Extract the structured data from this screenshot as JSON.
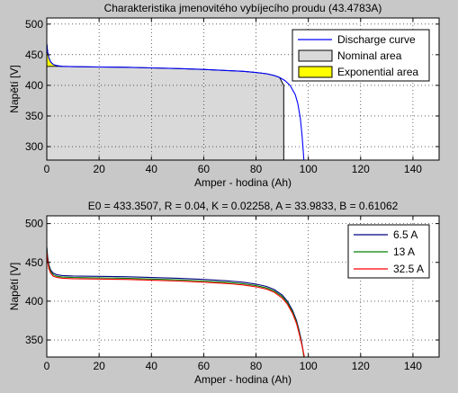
{
  "figure": {
    "background": "#c8c8c8"
  },
  "chart_data": [
    {
      "type": "line",
      "title": "Charakteristika jmenovitého vybíjecího proudu (43.4783A)",
      "xlabel": "Amper - hodina (Ah)",
      "ylabel": "Napětí [V]",
      "xlim": [
        0,
        150
      ],
      "ylim": [
        278,
        510
      ],
      "xticks": [
        0,
        20,
        40,
        60,
        80,
        100,
        120,
        140
      ],
      "yticks": [
        300,
        350,
        400,
        450,
        500
      ],
      "grid": true,
      "legend_position": "top-right",
      "series": [
        {
          "name": "Discharge curve",
          "color": "#0000ff",
          "x": [
            0,
            0.3,
            0.8,
            1.5,
            2.5,
            4,
            6,
            10,
            20,
            30,
            40,
            50,
            60,
            70,
            75,
            80,
            84,
            87,
            89,
            91,
            93,
            95,
            96,
            97,
            97.6,
            98.0,
            98.3
          ],
          "y": [
            468,
            455,
            445,
            438,
            434,
            432,
            431,
            430.5,
            430,
            429.5,
            428.5,
            427.5,
            426,
            424,
            423,
            421,
            419,
            416,
            413,
            408,
            400,
            385,
            370,
            345,
            318,
            295,
            278
          ]
        },
        {
          "name": "Nominal area",
          "color": "#d9d9d9",
          "x": [
            0,
            90.6
          ],
          "y": [
            431,
            400
          ]
        },
        {
          "name": "Exponential area",
          "color": "#ffff00",
          "x": [
            0,
            0.3,
            0.8,
            1.5,
            2.5,
            4,
            6
          ],
          "y": [
            468,
            455,
            445,
            438,
            434,
            432,
            431
          ]
        }
      ]
    },
    {
      "type": "line",
      "title": "E0 = 433.3507, R = 0.04, K = 0.02258, A = 33.9833, B = 0.61062",
      "xlabel": "Amper - hodina (Ah)",
      "ylabel": "Napětí [V]",
      "xlim": [
        0,
        150
      ],
      "ylim": [
        328,
        510
      ],
      "xticks": [
        0,
        20,
        40,
        60,
        80,
        100,
        120,
        140
      ],
      "yticks": [
        350,
        400,
        450,
        500
      ],
      "grid": true,
      "legend_position": "top-right",
      "series": [
        {
          "name": "6.5 A",
          "color": "#00007f",
          "x": [
            0,
            0.3,
            0.8,
            1.5,
            2.5,
            4,
            6,
            10,
            20,
            30,
            40,
            50,
            60,
            70,
            75,
            80,
            84,
            87,
            90,
            92,
            94,
            95.5,
            96.5,
            97.3,
            97.9,
            98.3
          ],
          "y": [
            470,
            458,
            447,
            440,
            436,
            434,
            433,
            432.5,
            432,
            431.5,
            430.5,
            429.5,
            428,
            426,
            424.5,
            422,
            419,
            415,
            408,
            400,
            388,
            375,
            362,
            350,
            338,
            328
          ]
        },
        {
          "name": "13 A",
          "color": "#007f00",
          "x": [
            0,
            0.3,
            0.8,
            1.5,
            2.5,
            4,
            6,
            10,
            20,
            30,
            40,
            50,
            60,
            70,
            75,
            80,
            84,
            87,
            90,
            92,
            94,
            95.5,
            96.5,
            97.3,
            97.9,
            98.3
          ],
          "y": [
            468,
            455,
            445,
            438,
            434,
            432,
            431,
            430.5,
            430,
            429.5,
            428.5,
            427.5,
            426,
            424,
            422.5,
            420,
            417,
            413,
            406,
            398,
            386,
            373,
            360,
            348,
            337,
            328
          ]
        },
        {
          "name": "32.5 A",
          "color": "#ff0000",
          "x": [
            0,
            0.3,
            0.8,
            1.5,
            2.5,
            4,
            6,
            10,
            20,
            30,
            40,
            50,
            60,
            70,
            75,
            80,
            84,
            87,
            90,
            92,
            94,
            95.5,
            96.5,
            97.5,
            98.1,
            98.5
          ],
          "y": [
            465,
            452,
            442,
            436,
            432,
            430.5,
            429.5,
            429,
            428.5,
            428,
            427,
            426,
            424.5,
            422.5,
            421,
            418.5,
            415.5,
            411.5,
            404,
            396,
            384,
            371,
            358,
            344,
            335,
            328
          ]
        }
      ]
    }
  ]
}
